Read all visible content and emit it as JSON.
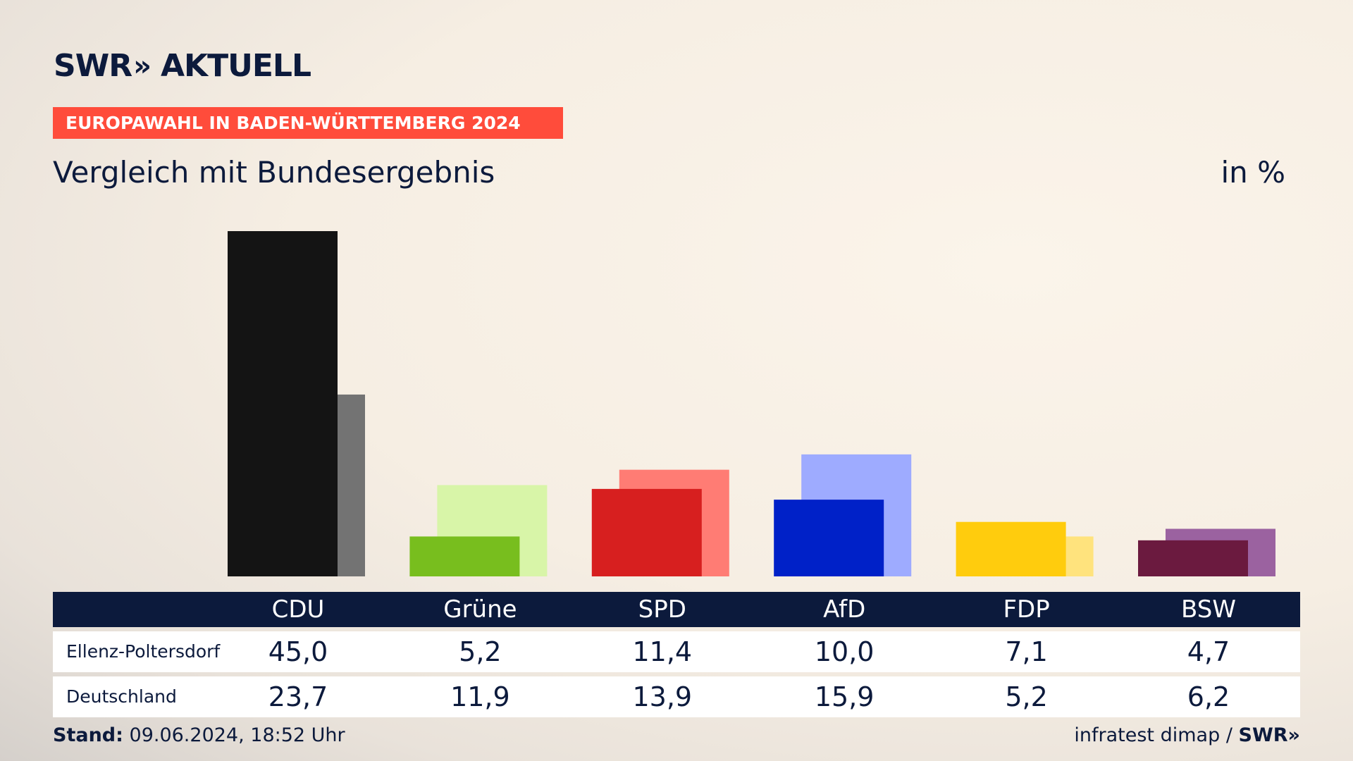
{
  "header": {
    "logo_main": "SWR",
    "logo_chevron": "»",
    "logo_sub": "AKTUELL",
    "section": "EUROPAWAHL IN BADEN-WÜRTTEMBERG 2024",
    "subtitle": "Vergleich mit Bundesergebnis",
    "unit": "in %"
  },
  "chart_data": {
    "type": "bar",
    "title": "Vergleich mit Bundesergebnis",
    "ylabel": "",
    "xlabel": "",
    "unit": "in %",
    "grid": false,
    "ylim": [
      0,
      45
    ],
    "categories": [
      "CDU",
      "Grüne",
      "SPD",
      "AfD",
      "FDP",
      "BSW"
    ],
    "series": [
      {
        "name": "Ellenz-Poltersdorf",
        "display": [
          "45,0",
          "5,2",
          "11,4",
          "10,0",
          "7,1",
          "4,7"
        ],
        "values": [
          45.0,
          5.2,
          11.4,
          10.0,
          7.1,
          4.7
        ],
        "colors": [
          "#141414",
          "#78be1e",
          "#d71f1f",
          "#0021c8",
          "#ffcc0d",
          "#6b1a3f"
        ]
      },
      {
        "name": "Deutschland",
        "display": [
          "23,7",
          "11,9",
          "13,9",
          "15,9",
          "5,2",
          "6,2"
        ],
        "values": [
          23.7,
          11.9,
          13.9,
          15.9,
          5.2,
          6.2
        ],
        "colors": [
          "#737373",
          "#d8f5a8",
          "#ff7c74",
          "#9eabff",
          "#ffe37d",
          "#9b62a0"
        ]
      }
    ]
  },
  "footer": {
    "stand_label": "Stand:",
    "stand_value": "09.06.2024, 18:52 Uhr",
    "source": "infratest dimap",
    "separator": "/",
    "brand": "SWR",
    "brand_chevron": "»"
  }
}
